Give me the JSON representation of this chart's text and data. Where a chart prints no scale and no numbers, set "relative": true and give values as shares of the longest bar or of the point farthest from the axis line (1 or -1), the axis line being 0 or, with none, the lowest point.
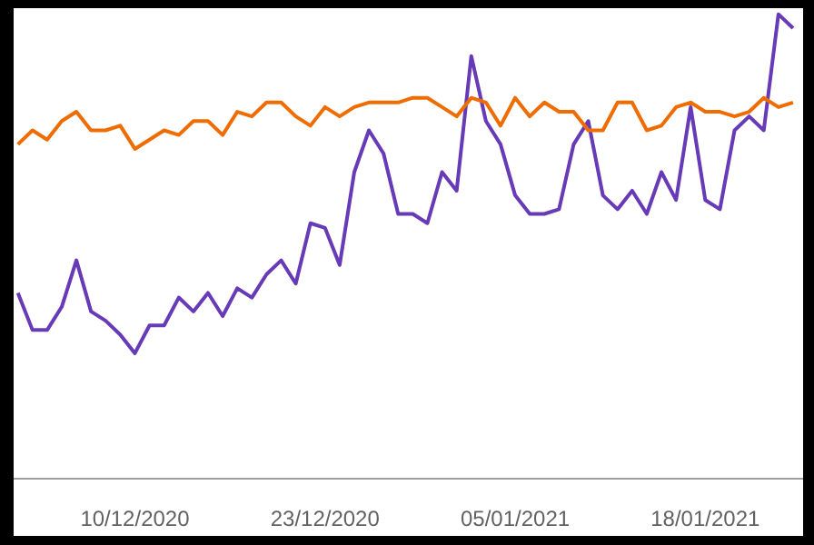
{
  "chart_data": {
    "type": "line",
    "relative": true,
    "x": [
      "2020-12-02",
      "2020-12-03",
      "2020-12-04",
      "2020-12-05",
      "2020-12-06",
      "2020-12-07",
      "2020-12-08",
      "2020-12-09",
      "2020-12-10",
      "2020-12-11",
      "2020-12-12",
      "2020-12-13",
      "2020-12-14",
      "2020-12-15",
      "2020-12-16",
      "2020-12-17",
      "2020-12-18",
      "2020-12-19",
      "2020-12-20",
      "2020-12-21",
      "2020-12-22",
      "2020-12-23",
      "2020-12-24",
      "2020-12-25",
      "2020-12-26",
      "2020-12-27",
      "2020-12-28",
      "2020-12-29",
      "2020-12-30",
      "2020-12-31",
      "2021-01-01",
      "2021-01-02",
      "2021-01-03",
      "2021-01-04",
      "2021-01-05",
      "2021-01-06",
      "2021-01-07",
      "2021-01-08",
      "2021-01-09",
      "2021-01-10",
      "2021-01-11",
      "2021-01-12",
      "2021-01-13",
      "2021-01-14",
      "2021-01-15",
      "2021-01-16",
      "2021-01-17",
      "2021-01-18",
      "2021-01-19",
      "2021-01-20",
      "2021-01-21",
      "2021-01-22",
      "2021-01-23",
      "2021-01-24"
    ],
    "xlim": [
      "2020-12-01T17:00",
      "2021-01-24T18:00"
    ],
    "xticks": [
      {
        "value": "2020-12-10",
        "label": "10/12/2020"
      },
      {
        "value": "2020-12-23",
        "label": "23/12/2020"
      },
      {
        "value": "2021-01-05",
        "label": "05/01/2021"
      },
      {
        "value": "2021-01-18",
        "label": "18/01/2021"
      }
    ],
    "series": [
      {
        "color": "#673ab7",
        "values": [
          0.4,
          0.32,
          0.32,
          0.37,
          0.47,
          0.36,
          0.34,
          0.31,
          0.27,
          0.33,
          0.33,
          0.39,
          0.36,
          0.4,
          0.35,
          0.41,
          0.39,
          0.44,
          0.47,
          0.42,
          0.55,
          0.54,
          0.46,
          0.66,
          0.75,
          0.7,
          0.57,
          0.57,
          0.55,
          0.66,
          0.62,
          0.91,
          0.77,
          0.72,
          0.61,
          0.57,
          0.57,
          0.58,
          0.72,
          0.77,
          0.61,
          0.58,
          0.62,
          0.57,
          0.66,
          0.6,
          0.8,
          0.6,
          0.58,
          0.75,
          0.78,
          0.75,
          1.0,
          0.97
        ]
      },
      {
        "color": "#ef6c00",
        "values": [
          0.72,
          0.75,
          0.73,
          0.77,
          0.79,
          0.75,
          0.75,
          0.76,
          0.71,
          0.73,
          0.75,
          0.74,
          0.77,
          0.77,
          0.74,
          0.79,
          0.78,
          0.81,
          0.81,
          0.78,
          0.76,
          0.8,
          0.78,
          0.8,
          0.81,
          0.81,
          0.81,
          0.82,
          0.82,
          0.8,
          0.78,
          0.82,
          0.81,
          0.76,
          0.82,
          0.78,
          0.81,
          0.79,
          0.79,
          0.75,
          0.75,
          0.81,
          0.81,
          0.75,
          0.76,
          0.8,
          0.81,
          0.79,
          0.79,
          0.78,
          0.79,
          0.82,
          0.8,
          0.81
        ]
      }
    ],
    "marker": "none",
    "line_style": "solid"
  }
}
